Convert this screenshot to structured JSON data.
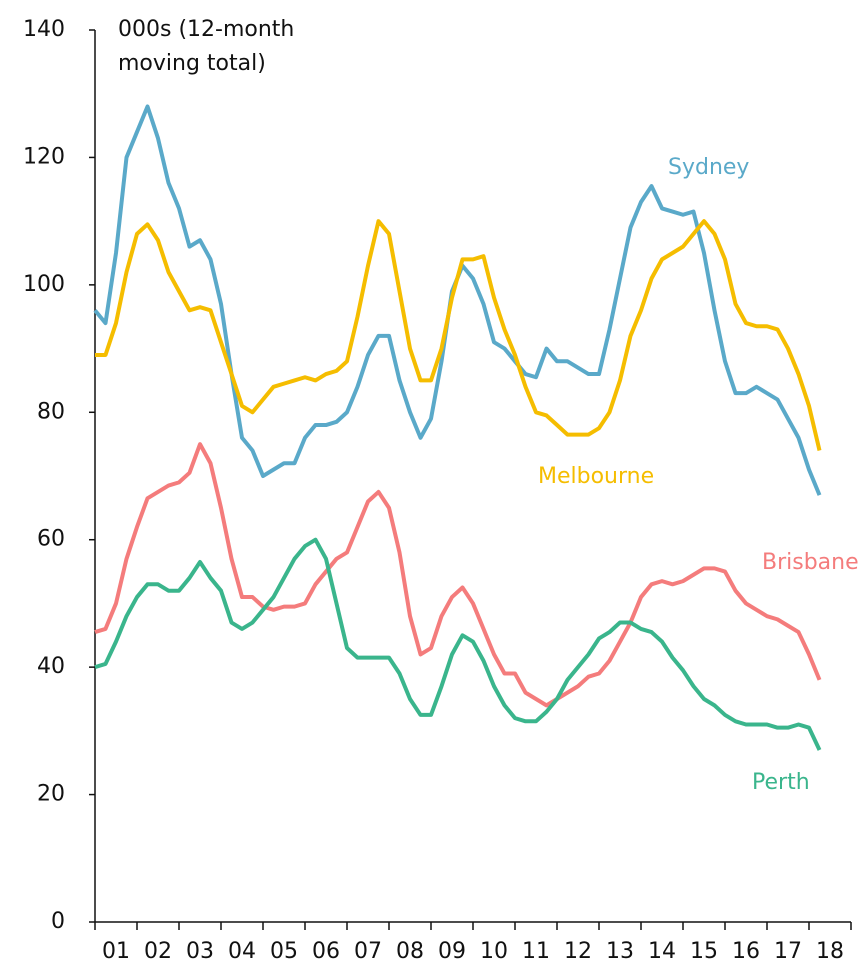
{
  "chart_data": {
    "type": "line",
    "ylabel_lines": [
      "000s (12-month",
      "moving total)"
    ],
    "x": [
      1,
      1.25,
      1.5,
      1.75,
      2,
      2.25,
      2.5,
      2.75,
      3,
      3.25,
      3.5,
      3.75,
      4,
      4.25,
      4.5,
      4.75,
      5,
      5.25,
      5.5,
      5.75,
      6,
      6.25,
      6.5,
      6.75,
      7,
      7.25,
      7.5,
      7.75,
      8,
      8.25,
      8.5,
      8.75,
      9,
      9.25,
      9.5,
      9.75,
      10,
      10.25,
      10.5,
      10.75,
      11,
      11.25,
      11.5,
      11.75,
      12,
      12.25,
      12.5,
      12.75,
      13,
      13.25,
      13.5,
      13.75,
      14,
      14.25,
      14.5,
      14.75,
      15,
      15.25,
      15.5,
      15.75,
      16,
      16.25,
      16.5,
      16.75,
      17,
      17.25,
      17.5,
      17.75,
      18,
      18.25
    ],
    "series": [
      {
        "name": "Sydney",
        "color": "#5aa9c9",
        "values": [
          96,
          94,
          105,
          120,
          124,
          128,
          123,
          116,
          112,
          106,
          107,
          104,
          97,
          86,
          76,
          74,
          70,
          71,
          72,
          72,
          76,
          78,
          78,
          78.5,
          80,
          84,
          89,
          92,
          92,
          85,
          80,
          76,
          79,
          88,
          99,
          103,
          101,
          97,
          91,
          90,
          88,
          86,
          85.5,
          90,
          88,
          88,
          87,
          86,
          86,
          93,
          101,
          109,
          113,
          115.5,
          112,
          111.5,
          111,
          111.5,
          105,
          96,
          88,
          83,
          83,
          84,
          83,
          82,
          79,
          76,
          71,
          67
        ]
      },
      {
        "name": "Melbourne",
        "color": "#f5bd00",
        "values": [
          89,
          89,
          94,
          102,
          108,
          109.5,
          107,
          102,
          99,
          96,
          96.5,
          96,
          91,
          86,
          81,
          80,
          82,
          84,
          84.5,
          85,
          85.5,
          85,
          86,
          86.5,
          88,
          95,
          103,
          110,
          108,
          99,
          90,
          85,
          85,
          90,
          98,
          104,
          104,
          104.5,
          98,
          93,
          89,
          84,
          80,
          79.5,
          78,
          76.5,
          76.5,
          76.5,
          77.5,
          80,
          85,
          92,
          96,
          101,
          104,
          105,
          106,
          108,
          110,
          108,
          104,
          97,
          94,
          93.5,
          93.5,
          93,
          90,
          86,
          81,
          74
        ]
      },
      {
        "name": "Brisbane",
        "color": "#f47c7c",
        "values": [
          45.5,
          46,
          50,
          57,
          62,
          66.5,
          67.5,
          68.5,
          69,
          70.5,
          75,
          72,
          65,
          57,
          51,
          51,
          49.5,
          49,
          49.5,
          49.5,
          50,
          53,
          55,
          57,
          58,
          62,
          66,
          67.5,
          65,
          58,
          48,
          42,
          43,
          48,
          51,
          52.5,
          50,
          46,
          42,
          39,
          39,
          36,
          35,
          34,
          35,
          36,
          37,
          38.5,
          39,
          41,
          44,
          47,
          51,
          53,
          53.5,
          53,
          53.5,
          54.5,
          55.5,
          55.5,
          55,
          52,
          50,
          49,
          48,
          47.5,
          46.5,
          45.5,
          42,
          38
        ]
      },
      {
        "name": "Perth",
        "color": "#3ab58c",
        "values": [
          40,
          40.5,
          44,
          48,
          51,
          53,
          53,
          52,
          52,
          54,
          56.5,
          54,
          52,
          47,
          46,
          47,
          49,
          51,
          54,
          57,
          59,
          60,
          57,
          50,
          43,
          41.5,
          41.5,
          41.5,
          41.5,
          39,
          35,
          32.5,
          32.5,
          37,
          42,
          45,
          44,
          41,
          37,
          34,
          32,
          31.5,
          31.5,
          33,
          35,
          38,
          40,
          42,
          44.5,
          45.5,
          47,
          47,
          46,
          45.5,
          44,
          41.5,
          39.5,
          37,
          35,
          34,
          32.5,
          31.5,
          31,
          31,
          31,
          30.5,
          30.5,
          31,
          30.5,
          27
        ]
      }
    ],
    "xlim": [
      1,
      19
    ],
    "xticks": [
      {
        "value": 1,
        "label": "01"
      },
      {
        "value": 2,
        "label": "02"
      },
      {
        "value": 3,
        "label": "03"
      },
      {
        "value": 4,
        "label": "04"
      },
      {
        "value": 5,
        "label": "05"
      },
      {
        "value": 6,
        "label": "06"
      },
      {
        "value": 7,
        "label": "07"
      },
      {
        "value": 8,
        "label": "08"
      },
      {
        "value": 9,
        "label": "09"
      },
      {
        "value": 10,
        "label": "10"
      },
      {
        "value": 11,
        "label": "11"
      },
      {
        "value": 12,
        "label": "12"
      },
      {
        "value": 13,
        "label": "13"
      },
      {
        "value": 14,
        "label": "14"
      },
      {
        "value": 15,
        "label": "15"
      },
      {
        "value": 16,
        "label": "16"
      },
      {
        "value": 17,
        "label": "17"
      },
      {
        "value": 18,
        "label": "18"
      }
    ],
    "ylim": [
      0,
      140
    ],
    "yticks": [
      0,
      20,
      40,
      60,
      80,
      100,
      120,
      140
    ],
    "grid": false
  }
}
